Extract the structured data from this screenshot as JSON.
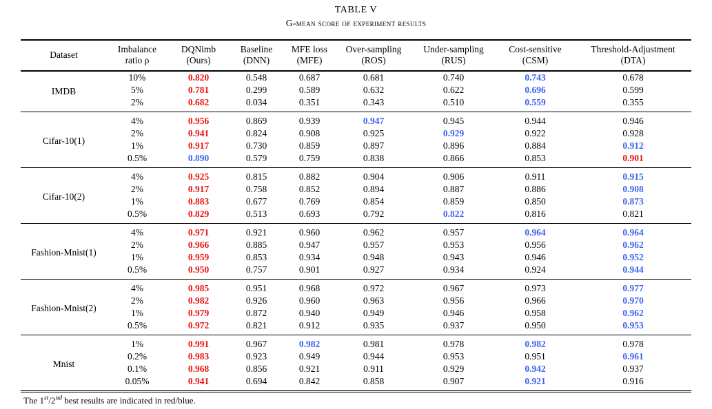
{
  "caption": {
    "number": "TABLE V",
    "title": "G-mean score of experiment results"
  },
  "colors": {
    "first_rank": "#ee1111",
    "second_rank": "#3c64f0"
  },
  "columns": [
    {
      "line1": "Dataset",
      "line2": ""
    },
    {
      "line1": "Imbalance",
      "line2": "ratio ρ"
    },
    {
      "line1": "DQNimb",
      "line2": "(Ours)"
    },
    {
      "line1": "Baseline",
      "line2": "(DNN)"
    },
    {
      "line1": "MFE loss",
      "line2": "(MFE)"
    },
    {
      "line1": "Over-sampling",
      "line2": "(ROS)"
    },
    {
      "line1": "Under-sampling",
      "line2": "(RUS)"
    },
    {
      "line1": "Cost-sensitive",
      "line2": "(CSM)"
    },
    {
      "line1": "Threshold-Adjustment",
      "line2": "(DTA)"
    }
  ],
  "groups": [
    {
      "dataset": "IMDB",
      "rows": [
        {
          "ratio": "10%",
          "values": [
            {
              "v": "0.820",
              "rank": "first"
            },
            {
              "v": "0.548"
            },
            {
              "v": "0.687"
            },
            {
              "v": "0.681"
            },
            {
              "v": "0.740"
            },
            {
              "v": "0.743",
              "rank": "second"
            },
            {
              "v": "0.678"
            }
          ]
        },
        {
          "ratio": "5%",
          "values": [
            {
              "v": "0.781",
              "rank": "first"
            },
            {
              "v": "0.299"
            },
            {
              "v": "0.589"
            },
            {
              "v": "0.632"
            },
            {
              "v": "0.622"
            },
            {
              "v": "0.696",
              "rank": "second"
            },
            {
              "v": "0.599"
            }
          ]
        },
        {
          "ratio": "2%",
          "values": [
            {
              "v": "0.682",
              "rank": "first"
            },
            {
              "v": "0.034"
            },
            {
              "v": "0.351"
            },
            {
              "v": "0.343"
            },
            {
              "v": "0.510"
            },
            {
              "v": "0.559",
              "rank": "second"
            },
            {
              "v": "0.355"
            }
          ]
        }
      ]
    },
    {
      "dataset": "Cifar-10(1)",
      "rows": [
        {
          "ratio": "4%",
          "values": [
            {
              "v": "0.956",
              "rank": "first"
            },
            {
              "v": "0.869"
            },
            {
              "v": "0.939"
            },
            {
              "v": "0.947",
              "rank": "second"
            },
            {
              "v": "0.945"
            },
            {
              "v": "0.944"
            },
            {
              "v": "0.946"
            }
          ]
        },
        {
          "ratio": "2%",
          "values": [
            {
              "v": "0.941",
              "rank": "first"
            },
            {
              "v": "0.824"
            },
            {
              "v": "0.908"
            },
            {
              "v": "0.925"
            },
            {
              "v": "0.929",
              "rank": "second"
            },
            {
              "v": "0.922"
            },
            {
              "v": "0.928"
            }
          ]
        },
        {
          "ratio": "1%",
          "values": [
            {
              "v": "0.917",
              "rank": "first"
            },
            {
              "v": "0.730"
            },
            {
              "v": "0.859"
            },
            {
              "v": "0.897"
            },
            {
              "v": "0.896"
            },
            {
              "v": "0.884"
            },
            {
              "v": "0.912",
              "rank": "second"
            }
          ]
        },
        {
          "ratio": "0.5%",
          "values": [
            {
              "v": "0.890",
              "rank": "second"
            },
            {
              "v": "0.579"
            },
            {
              "v": "0.759"
            },
            {
              "v": "0.838"
            },
            {
              "v": "0.866"
            },
            {
              "v": "0.853"
            },
            {
              "v": "0.901",
              "rank": "first"
            }
          ]
        }
      ]
    },
    {
      "dataset": "Cifar-10(2)",
      "rows": [
        {
          "ratio": "4%",
          "values": [
            {
              "v": "0.925",
              "rank": "first"
            },
            {
              "v": "0.815"
            },
            {
              "v": "0.882"
            },
            {
              "v": "0.904"
            },
            {
              "v": "0.906"
            },
            {
              "v": "0.911"
            },
            {
              "v": "0.915",
              "rank": "second"
            }
          ]
        },
        {
          "ratio": "2%",
          "values": [
            {
              "v": "0.917",
              "rank": "first"
            },
            {
              "v": "0.758"
            },
            {
              "v": "0.852"
            },
            {
              "v": "0.894"
            },
            {
              "v": "0.887"
            },
            {
              "v": "0.886"
            },
            {
              "v": "0.908",
              "rank": "second"
            }
          ]
        },
        {
          "ratio": "1%",
          "values": [
            {
              "v": "0.883",
              "rank": "first"
            },
            {
              "v": "0.677"
            },
            {
              "v": "0.769"
            },
            {
              "v": "0.854"
            },
            {
              "v": "0.859"
            },
            {
              "v": "0.850"
            },
            {
              "v": "0.873",
              "rank": "second"
            }
          ]
        },
        {
          "ratio": "0.5%",
          "values": [
            {
              "v": "0.829",
              "rank": "first"
            },
            {
              "v": "0.513"
            },
            {
              "v": "0.693"
            },
            {
              "v": "0.792"
            },
            {
              "v": "0.822",
              "rank": "second"
            },
            {
              "v": "0.816"
            },
            {
              "v": "0.821"
            }
          ]
        }
      ]
    },
    {
      "dataset": "Fashion-Mnist(1)",
      "rows": [
        {
          "ratio": "4%",
          "values": [
            {
              "v": "0.971",
              "rank": "first"
            },
            {
              "v": "0.921"
            },
            {
              "v": "0.960"
            },
            {
              "v": "0.962"
            },
            {
              "v": "0.957"
            },
            {
              "v": "0.964",
              "rank": "second"
            },
            {
              "v": "0.964",
              "rank": "second"
            }
          ]
        },
        {
          "ratio": "2%",
          "values": [
            {
              "v": "0.966",
              "rank": "first"
            },
            {
              "v": "0.885"
            },
            {
              "v": "0.947"
            },
            {
              "v": "0.957"
            },
            {
              "v": "0.953"
            },
            {
              "v": "0.956"
            },
            {
              "v": "0.962",
              "rank": "second"
            }
          ]
        },
        {
          "ratio": "1%",
          "values": [
            {
              "v": "0.959",
              "rank": "first"
            },
            {
              "v": "0.853"
            },
            {
              "v": "0.934"
            },
            {
              "v": "0.948"
            },
            {
              "v": "0.943"
            },
            {
              "v": "0.946"
            },
            {
              "v": "0.952",
              "rank": "second"
            }
          ]
        },
        {
          "ratio": "0.5%",
          "values": [
            {
              "v": "0.950",
              "rank": "first"
            },
            {
              "v": "0.757"
            },
            {
              "v": "0.901"
            },
            {
              "v": "0.927"
            },
            {
              "v": "0.934"
            },
            {
              "v": "0.924"
            },
            {
              "v": "0.944",
              "rank": "second"
            }
          ]
        }
      ]
    },
    {
      "dataset": "Fashion-Mnist(2)",
      "rows": [
        {
          "ratio": "4%",
          "values": [
            {
              "v": "0.985",
              "rank": "first"
            },
            {
              "v": "0.951"
            },
            {
              "v": "0.968"
            },
            {
              "v": "0.972"
            },
            {
              "v": "0.967"
            },
            {
              "v": "0.973"
            },
            {
              "v": "0.977",
              "rank": "second"
            }
          ]
        },
        {
          "ratio": "2%",
          "values": [
            {
              "v": "0.982",
              "rank": "first"
            },
            {
              "v": "0.926"
            },
            {
              "v": "0.960"
            },
            {
              "v": "0.963"
            },
            {
              "v": "0.956"
            },
            {
              "v": "0.966"
            },
            {
              "v": "0.970",
              "rank": "second"
            }
          ]
        },
        {
          "ratio": "1%",
          "values": [
            {
              "v": "0.979",
              "rank": "first"
            },
            {
              "v": "0.872"
            },
            {
              "v": "0.940"
            },
            {
              "v": "0.949"
            },
            {
              "v": "0.946"
            },
            {
              "v": "0.958"
            },
            {
              "v": "0.962",
              "rank": "second"
            }
          ]
        },
        {
          "ratio": "0.5%",
          "values": [
            {
              "v": "0.972",
              "rank": "first"
            },
            {
              "v": "0.821"
            },
            {
              "v": "0.912"
            },
            {
              "v": "0.935"
            },
            {
              "v": "0.937"
            },
            {
              "v": "0.950"
            },
            {
              "v": "0.953",
              "rank": "second"
            }
          ]
        }
      ]
    },
    {
      "dataset": "Mnist",
      "rows": [
        {
          "ratio": "1%",
          "values": [
            {
              "v": "0.991",
              "rank": "first"
            },
            {
              "v": "0.967"
            },
            {
              "v": "0.982",
              "rank": "second"
            },
            {
              "v": "0.981"
            },
            {
              "v": "0.978"
            },
            {
              "v": "0.982",
              "rank": "second"
            },
            {
              "v": "0.978"
            }
          ]
        },
        {
          "ratio": "0.2%",
          "values": [
            {
              "v": "0.983",
              "rank": "first"
            },
            {
              "v": "0.923"
            },
            {
              "v": "0.949"
            },
            {
              "v": "0.944"
            },
            {
              "v": "0.953"
            },
            {
              "v": "0.951"
            },
            {
              "v": "0.961",
              "rank": "second"
            }
          ]
        },
        {
          "ratio": "0.1%",
          "values": [
            {
              "v": "0.968",
              "rank": "first"
            },
            {
              "v": "0.856"
            },
            {
              "v": "0.921"
            },
            {
              "v": "0.911"
            },
            {
              "v": "0.929"
            },
            {
              "v": "0.942",
              "rank": "second"
            },
            {
              "v": "0.937"
            }
          ]
        },
        {
          "ratio": "0.05%",
          "values": [
            {
              "v": "0.941",
              "rank": "first"
            },
            {
              "v": "0.694"
            },
            {
              "v": "0.842"
            },
            {
              "v": "0.858"
            },
            {
              "v": "0.907"
            },
            {
              "v": "0.921",
              "rank": "second"
            },
            {
              "v": "0.916"
            }
          ]
        }
      ]
    }
  ],
  "footnote": {
    "prefix": "The 1",
    "sup1": "st",
    "mid": "/2",
    "sup2": "nd",
    "suffix": " best results are indicated in red/blue."
  }
}
